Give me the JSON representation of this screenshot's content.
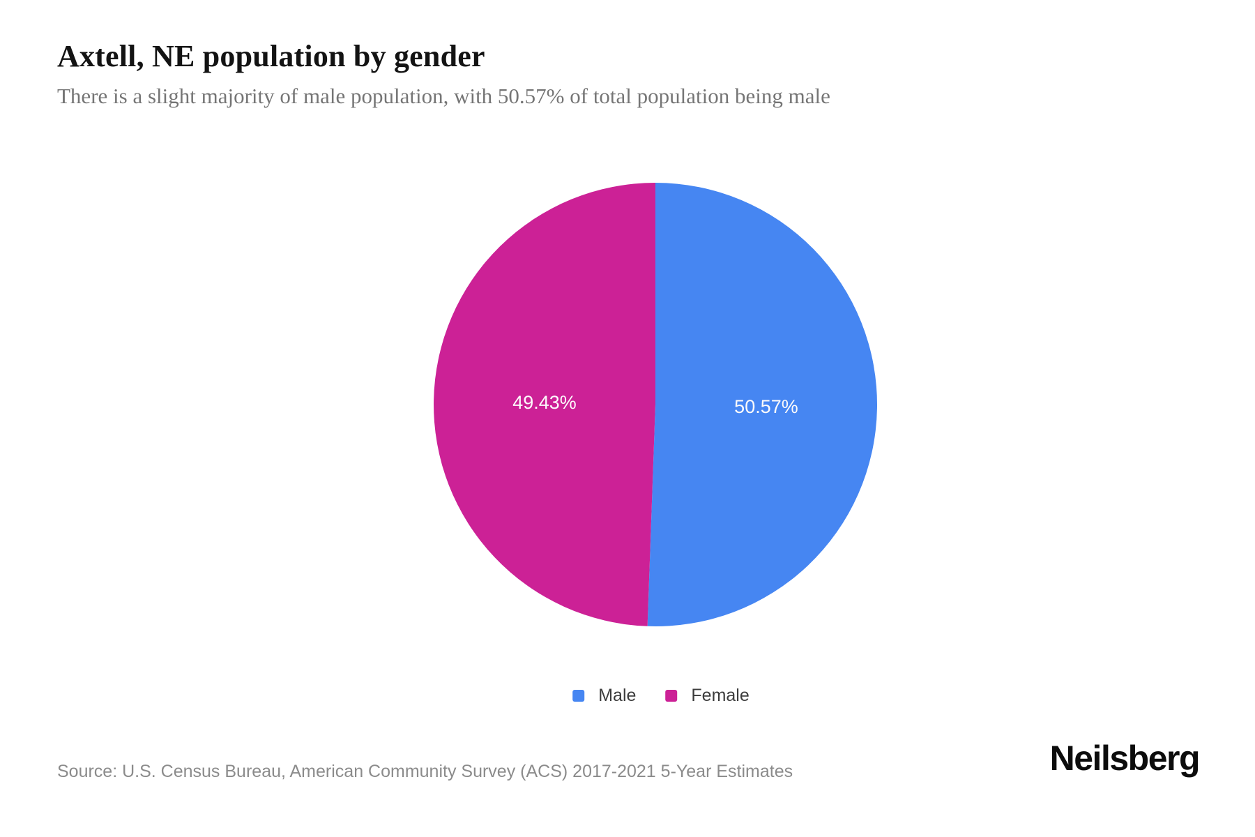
{
  "page": {
    "title": "Axtell, NE population by gender",
    "subtitle": "There is a slight majority of male population, with 50.57% of total population being male",
    "source": "Source: U.S. Census Bureau, American Community Survey (ACS) 2017-2021 5-Year Estimates",
    "logo": "Neilsberg"
  },
  "chart_data": {
    "type": "pie",
    "title": "Axtell, NE population by gender",
    "categories": [
      "Male",
      "Female"
    ],
    "values": [
      50.57,
      49.43
    ],
    "value_labels": [
      "50.57%",
      "49.43%"
    ],
    "colors": [
      "#4686F2",
      "#CC2196"
    ],
    "label_color": "#fcfafb",
    "start_angle_deg": -90,
    "direction": "clockwise",
    "legend_position": "bottom"
  },
  "legend": {
    "items": [
      {
        "label": "Male",
        "color": "#4686F2"
      },
      {
        "label": "Female",
        "color": "#CC2196"
      }
    ]
  }
}
